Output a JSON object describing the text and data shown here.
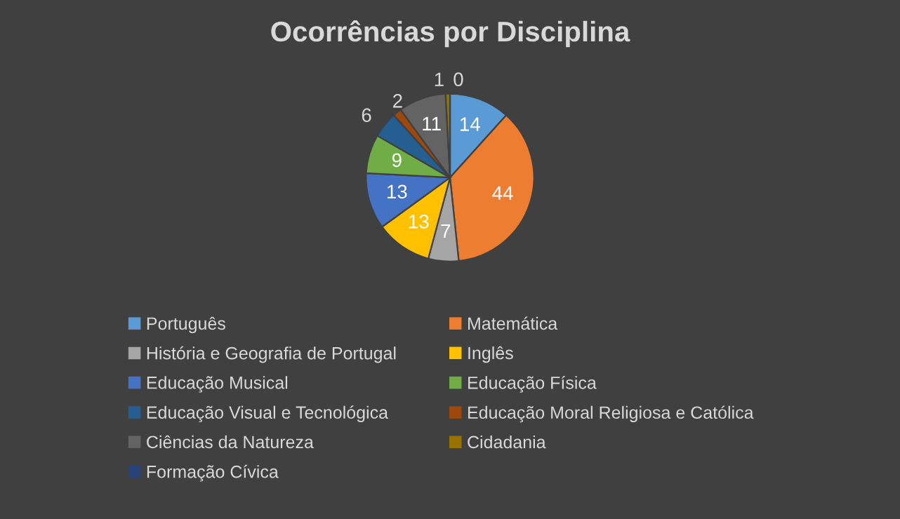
{
  "chart_data": {
    "type": "pie",
    "title": "Ocorrências por Disciplina",
    "categories": [
      "Português",
      "Matemática",
      "História e Geografia de Portugal",
      "Inglês",
      "Educação Musical",
      "Educação Física",
      "Educação Visual e Tecnológica",
      "Educação Moral Religiosa e Católica",
      "Ciências da Natureza",
      "Cidadania",
      "Formação Cívica"
    ],
    "values": [
      14,
      44,
      7,
      13,
      13,
      9,
      6,
      2,
      11,
      1,
      0
    ],
    "colors": [
      "#5b9bd5",
      "#ed7d31",
      "#a5a5a5",
      "#ffc000",
      "#4472c4",
      "#70ad47",
      "#255e91",
      "#9e480e",
      "#636363",
      "#997300",
      "#264478"
    ],
    "value_labels": [
      "14",
      "44",
      "7",
      "13",
      "13",
      "9",
      "6",
      "2",
      "11",
      "1",
      "0"
    ],
    "legend": "bottom"
  }
}
